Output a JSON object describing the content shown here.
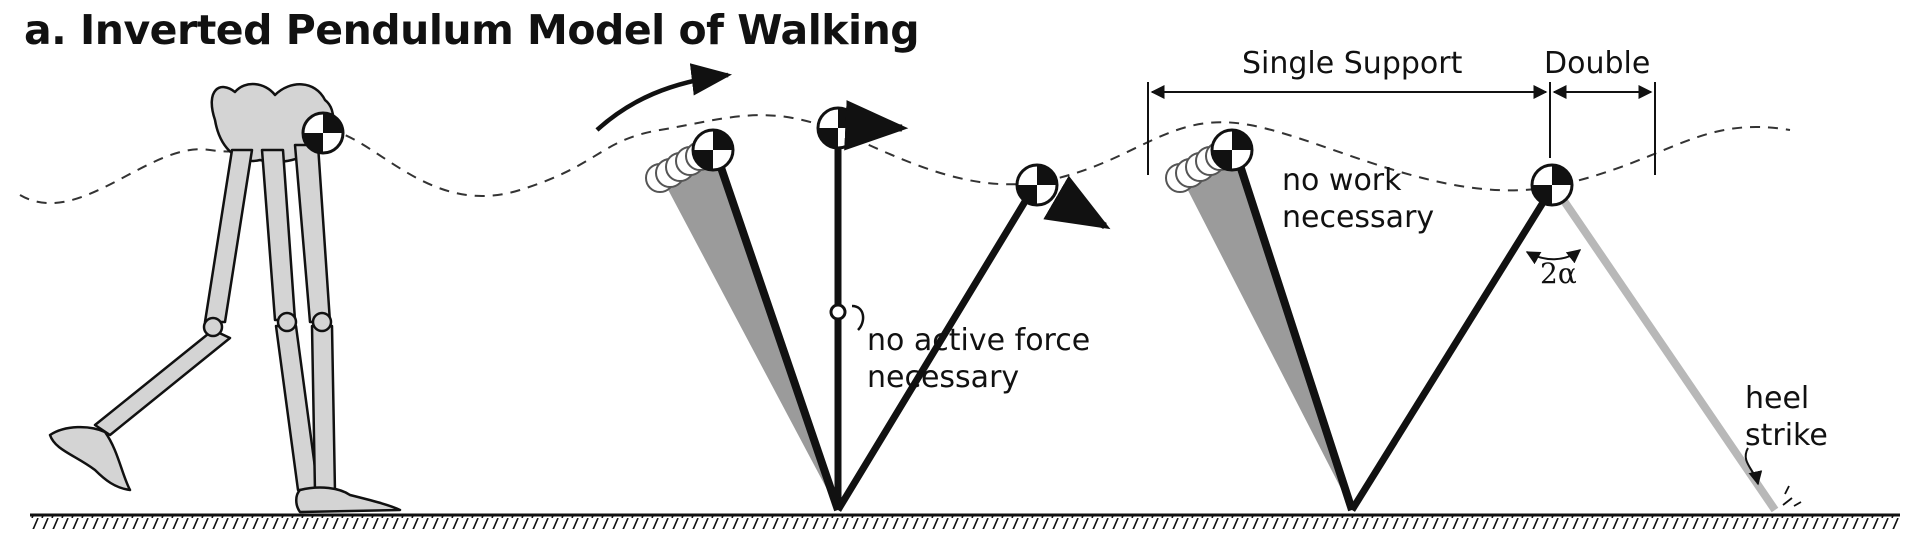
{
  "title": "a. Inverted Pendulum Model of Walking",
  "labels": {
    "no_active_force_1": "no active force",
    "no_active_force_2": "necessary",
    "no_work_1": "no work",
    "no_work_2": "necessary",
    "single_support": "Single Support",
    "double": "Double",
    "angle": "2α",
    "heel_1": "heel",
    "heel_2": "strike"
  },
  "colors": {
    "ink": "#111111",
    "bone_fill": "#d4d4d4",
    "shadow_leg": "#8a8a8a",
    "swing_leg": "#b8b8b8",
    "com_light": "#ffffff",
    "com_dark": "#111111"
  },
  "icons": [
    "center-of-mass-icon",
    "hinge-joint-icon",
    "arrow-icon"
  ]
}
